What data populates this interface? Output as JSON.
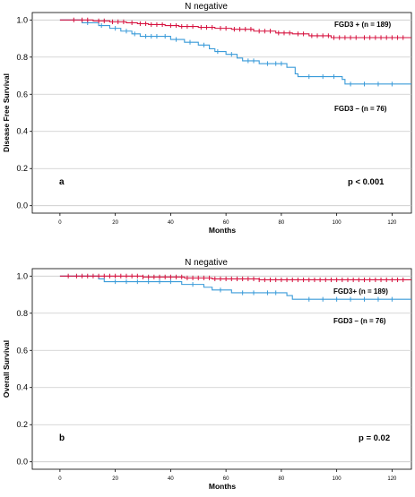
{
  "chart_data": [
    {
      "type": "line",
      "title": "N negative",
      "xlabel": "Months",
      "ylabel": "Disease Free Survival",
      "xlim": [
        -10,
        127
      ],
      "ylim": [
        -0.04,
        1.04
      ],
      "xticks": [
        "0",
        "20",
        "40",
        "60",
        "80",
        "100",
        "120"
      ],
      "yticks": [
        "0.0",
        "0.2",
        "0.4",
        "0.6",
        "0.8",
        "1.0"
      ],
      "grid": "horizontal",
      "panel_label": "a",
      "p_value": "p < 0.001",
      "series": [
        {
          "name": "FGD3 + (n = 189)",
          "color": "#d6123f",
          "steps": [
            [
              0,
              1.0
            ],
            [
              12,
              0.995
            ],
            [
              18,
              0.99
            ],
            [
              24,
              0.985
            ],
            [
              28,
              0.98
            ],
            [
              32,
              0.975
            ],
            [
              38,
              0.97
            ],
            [
              43,
              0.965
            ],
            [
              50,
              0.96
            ],
            [
              56,
              0.955
            ],
            [
              62,
              0.95
            ],
            [
              70,
              0.94
            ],
            [
              78,
              0.93
            ],
            [
              84,
              0.925
            ],
            [
              90,
              0.915
            ],
            [
              98,
              0.905
            ],
            [
              127,
              0.905
            ]
          ],
          "censored": [
            5,
            8,
            10,
            14,
            16,
            19,
            21,
            23,
            26,
            29,
            31,
            33,
            35,
            37,
            40,
            42,
            44,
            46,
            48,
            51,
            53,
            55,
            58,
            60,
            63,
            65,
            67,
            69,
            72,
            74,
            76,
            79,
            81,
            83,
            86,
            88,
            91,
            93,
            95,
            97,
            99,
            101,
            103,
            105,
            107,
            110,
            112,
            114,
            116,
            118,
            120,
            122,
            124
          ]
        },
        {
          "name": "FGD3 – (n = 76)",
          "color": "#3a9bd9",
          "steps": [
            [
              0,
              1.0
            ],
            [
              8,
              0.985
            ],
            [
              14,
              0.97
            ],
            [
              18,
              0.955
            ],
            [
              22,
              0.94
            ],
            [
              26,
              0.925
            ],
            [
              29,
              0.912
            ],
            [
              40,
              0.895
            ],
            [
              45,
              0.88
            ],
            [
              50,
              0.865
            ],
            [
              54,
              0.845
            ],
            [
              56,
              0.83
            ],
            [
              60,
              0.815
            ],
            [
              64,
              0.795
            ],
            [
              66,
              0.78
            ],
            [
              72,
              0.765
            ],
            [
              82,
              0.745
            ],
            [
              85,
              0.71
            ],
            [
              86,
              0.695
            ],
            [
              102,
              0.68
            ],
            [
              103,
              0.655
            ],
            [
              127,
              0.655
            ]
          ],
          "censored": [
            10,
            15,
            20,
            24,
            27,
            31,
            33,
            35,
            38,
            42,
            47,
            52,
            57,
            62,
            68,
            70,
            75,
            78,
            80,
            90,
            95,
            99,
            105,
            110,
            115,
            120
          ]
        }
      ]
    },
    {
      "type": "line",
      "title": "N negative",
      "xlabel": "Months",
      "ylabel": "Overall Survival",
      "xlim": [
        -10,
        127
      ],
      "ylim": [
        -0.04,
        1.04
      ],
      "xticks": [
        "0",
        "20",
        "40",
        "60",
        "80",
        "100",
        "120"
      ],
      "yticks": [
        "0.0",
        "0.2",
        "0.4",
        "0.6",
        "0.8",
        "1.0"
      ],
      "grid": "horizontal",
      "panel_label": "b",
      "p_value": "p = 0.02",
      "series": [
        {
          "name": "FGD3+ (n = 189)",
          "color": "#d6123f",
          "steps": [
            [
              0,
              1.0
            ],
            [
              30,
              0.995
            ],
            [
              45,
              0.99
            ],
            [
              55,
              0.985
            ],
            [
              72,
              0.98
            ],
            [
              127,
              0.98
            ]
          ],
          "censored": [
            3,
            6,
            8,
            10,
            12,
            14,
            16,
            18,
            20,
            22,
            24,
            26,
            28,
            30,
            32,
            34,
            36,
            38,
            40,
            42,
            44,
            46,
            48,
            50,
            52,
            54,
            56,
            58,
            60,
            62,
            64,
            66,
            68,
            70,
            72,
            74,
            76,
            78,
            80,
            82,
            84,
            86,
            88,
            90,
            92,
            94,
            96,
            98,
            100,
            102,
            104,
            106,
            108,
            110,
            112,
            114,
            116,
            118,
            120,
            122,
            124
          ]
        },
        {
          "name": "FGD3 – (n = 76)",
          "color": "#3a9bd9",
          "steps": [
            [
              0,
              1.0
            ],
            [
              14,
              0.985
            ],
            [
              16,
              0.97
            ],
            [
              44,
              0.955
            ],
            [
              52,
              0.94
            ],
            [
              55,
              0.925
            ],
            [
              62,
              0.91
            ],
            [
              82,
              0.895
            ],
            [
              84,
              0.875
            ],
            [
              127,
              0.875
            ]
          ],
          "censored": [
            20,
            24,
            28,
            32,
            36,
            40,
            48,
            58,
            66,
            70,
            75,
            78,
            90,
            95,
            100,
            105,
            110,
            115,
            120
          ]
        }
      ]
    }
  ]
}
